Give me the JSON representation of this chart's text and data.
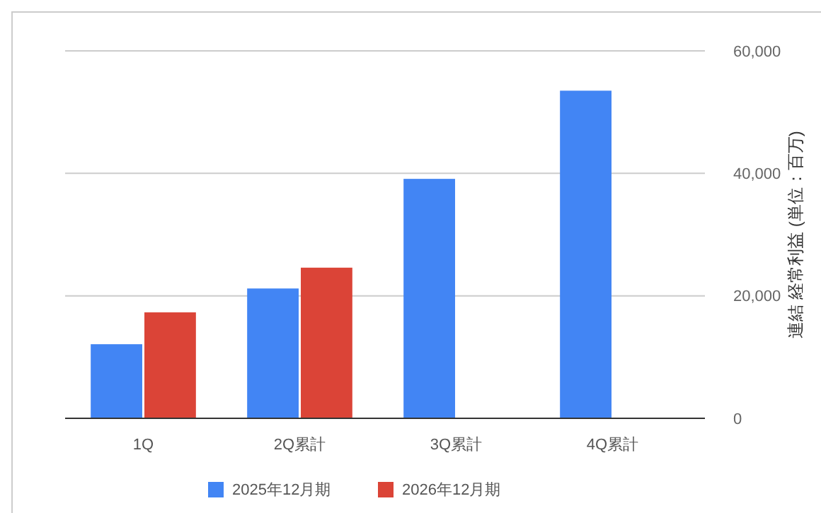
{
  "chart_data": {
    "type": "bar",
    "categories": [
      "1Q",
      "2Q累計",
      "3Q累計",
      "4Q累計"
    ],
    "ylabel": "連結 経常利益 (単位：百万)",
    "series": [
      {
        "name": "2025年12月期",
        "color": "#4285f4",
        "values": [
          12100,
          21200,
          39100,
          53500
        ]
      },
      {
        "name": "2026年12月期",
        "color": "#db4437",
        "values": [
          17300,
          24600,
          null,
          null
        ]
      }
    ],
    "ylim": [
      0,
      60000
    ],
    "yticks": [
      {
        "value": 0,
        "label": "0"
      },
      {
        "value": 20000,
        "label": "20,000"
      },
      {
        "value": 40000,
        "label": "40,000"
      },
      {
        "value": 60000,
        "label": "60,000"
      }
    ],
    "grid": "y",
    "legend": "bottom"
  }
}
